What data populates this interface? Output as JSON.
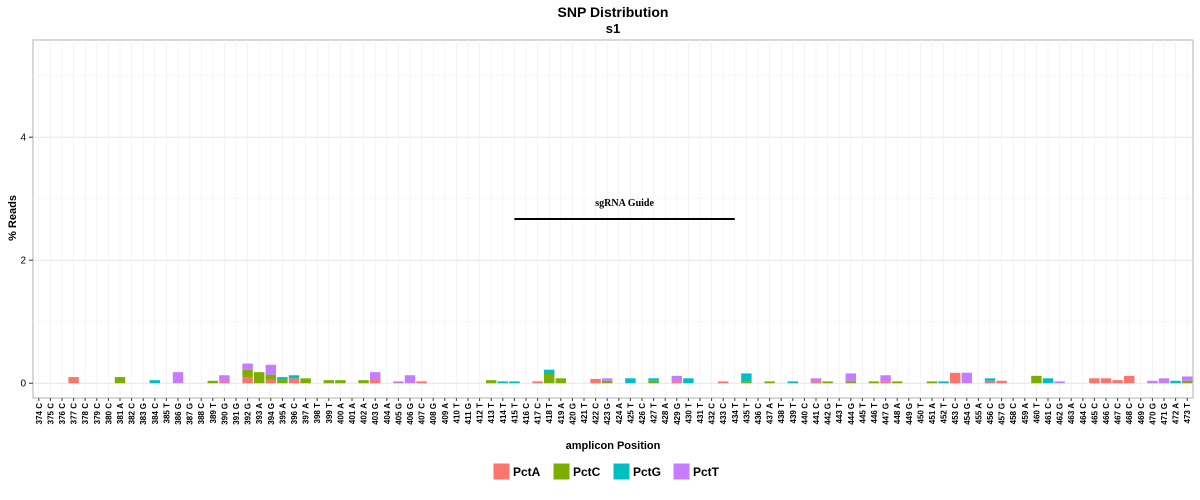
{
  "chart_data": {
    "type": "stacked_bar",
    "title": "SNP Distribution",
    "subtitle": "s1",
    "x_label": "amplicon Position",
    "y_label": "% Reads",
    "categories": [
      "374 C",
      "375 C",
      "376 C",
      "377 C",
      "378 C",
      "379 C",
      "380 C",
      "381 A",
      "382 C",
      "383 G",
      "384 C",
      "385 T",
      "386 G",
      "387 G",
      "388 C",
      "389 T",
      "390 G",
      "391 G",
      "392 G",
      "393 A",
      "394 G",
      "395 A",
      "396 C",
      "397 A",
      "398 T",
      "399 T",
      "400 A",
      "401 A",
      "402 A",
      "403 G",
      "404 A",
      "405 G",
      "406 G",
      "407 C",
      "408 G",
      "409 A",
      "410 T",
      "411 G",
      "412 T",
      "413 T",
      "414 T",
      "415 T",
      "416 C",
      "417 C",
      "418 T",
      "419 A",
      "420 G",
      "421 T",
      "422 C",
      "423 G",
      "424 A",
      "425 T",
      "426 C",
      "427 T",
      "428 A",
      "429 G",
      "430 T",
      "431 T",
      "432 C",
      "433 C",
      "434 T",
      "435 T",
      "436 C",
      "437 A",
      "438 T",
      "439 T",
      "440 C",
      "441 C",
      "442 G",
      "443 T",
      "444 G",
      "445 T",
      "446 T",
      "447 G",
      "448 A",
      "449 G",
      "450 T",
      "451 A",
      "452 T",
      "453 C",
      "454 G",
      "455 A",
      "456 C",
      "457 G",
      "458 C",
      "459 A",
      "460 T",
      "461 C",
      "462 G",
      "463 A",
      "464 C",
      "465 C",
      "466 C",
      "467 C",
      "468 C",
      "469 C",
      "470 G",
      "471 G",
      "472 A",
      "473 T"
    ],
    "series": [
      {
        "name": "PctA",
        "color": "#f8766d",
        "values": [
          0,
          0,
          0,
          0.1,
          0,
          0,
          0,
          0,
          0,
          0,
          0,
          0,
          0,
          0,
          0,
          0,
          0.03,
          0,
          0.1,
          0,
          0.06,
          0,
          0.08,
          0,
          0,
          0,
          0,
          0,
          0,
          0.06,
          0,
          0,
          0,
          0.03,
          0,
          0,
          0,
          0,
          0,
          0,
          0,
          0,
          0,
          0.03,
          0,
          0,
          0,
          0,
          0.07,
          0,
          0,
          0,
          0,
          0,
          0,
          0.03,
          0,
          0,
          0,
          0.03,
          0,
          0,
          0,
          0,
          0,
          0,
          0,
          0.03,
          0,
          0,
          0,
          0,
          0,
          0.03,
          0,
          0,
          0,
          0,
          0,
          0.17,
          0,
          0,
          0.04,
          0.04,
          0,
          0,
          0,
          0,
          0,
          0,
          0,
          0.08,
          0.08,
          0.05,
          0.12,
          0,
          0,
          0,
          0,
          0
        ]
      },
      {
        "name": "PctC",
        "color": "#7cae00",
        "values": [
          0,
          0,
          0,
          0,
          0,
          0,
          0,
          0.1,
          0,
          0,
          0,
          0,
          0,
          0,
          0,
          0.04,
          0,
          0,
          0.12,
          0.18,
          0.08,
          0.06,
          0,
          0.08,
          0,
          0.05,
          0.05,
          0,
          0.05,
          0,
          0,
          0,
          0,
          0,
          0,
          0,
          0,
          0,
          0,
          0.05,
          0,
          0,
          0,
          0,
          0.15,
          0.08,
          0,
          0,
          0,
          0.04,
          0,
          0,
          0,
          0.04,
          0,
          0,
          0,
          0,
          0,
          0,
          0,
          0.03,
          0,
          0.03,
          0,
          0,
          0,
          0,
          0.03,
          0,
          0.03,
          0,
          0.03,
          0,
          0.03,
          0,
          0,
          0.03,
          0,
          0,
          0,
          0,
          0,
          0,
          0,
          0,
          0.12,
          0,
          0,
          0,
          0,
          0,
          0,
          0,
          0,
          0,
          0,
          0,
          0,
          0.04
        ]
      },
      {
        "name": "PctG",
        "color": "#00bfc4",
        "values": [
          0,
          0,
          0,
          0,
          0,
          0,
          0,
          0,
          0,
          0,
          0.05,
          0,
          0,
          0,
          0,
          0,
          0,
          0,
          0,
          0,
          0,
          0.04,
          0.05,
          0,
          0,
          0,
          0,
          0,
          0,
          0,
          0,
          0,
          0,
          0,
          0,
          0,
          0,
          0,
          0,
          0,
          0.03,
          0.03,
          0,
          0,
          0.07,
          0,
          0,
          0,
          0,
          0,
          0,
          0.08,
          0,
          0.04,
          0,
          0,
          0.08,
          0,
          0,
          0,
          0,
          0.13,
          0,
          0,
          0,
          0.03,
          0,
          0,
          0,
          0,
          0,
          0,
          0,
          0,
          0,
          0,
          0,
          0,
          0.03,
          0,
          0,
          0,
          0.04,
          0,
          0,
          0,
          0,
          0.08,
          0,
          0,
          0,
          0,
          0,
          0,
          0,
          0,
          0,
          0,
          0.04,
          0
        ]
      },
      {
        "name": "PctT",
        "color": "#c77cff",
        "values": [
          0,
          0,
          0,
          0,
          0,
          0,
          0,
          0,
          0,
          0,
          0,
          0,
          0.18,
          0,
          0,
          0,
          0.1,
          0,
          0.1,
          0,
          0.16,
          0,
          0,
          0,
          0,
          0,
          0,
          0,
          0,
          0.12,
          0,
          0.03,
          0.13,
          0,
          0,
          0,
          0,
          0,
          0,
          0,
          0,
          0,
          0,
          0,
          0,
          0,
          0,
          0,
          0,
          0.04,
          0,
          0,
          0,
          0,
          0,
          0.09,
          0,
          0,
          0,
          0,
          0,
          0,
          0,
          0,
          0,
          0,
          0,
          0.05,
          0,
          0,
          0.13,
          0,
          0,
          0.1,
          0,
          0,
          0,
          0,
          0,
          0,
          0.17,
          0,
          0,
          0,
          0,
          0,
          0,
          0,
          0.03,
          0,
          0,
          0,
          0,
          0,
          0,
          0,
          0.04,
          0.08,
          0,
          0.07
        ]
      }
    ],
    "ylim": [
      -0.24,
      5.58
    ],
    "yticks": [
      0,
      2,
      4
    ],
    "yticks_minor": [
      1,
      3,
      5
    ],
    "grid": true,
    "legend": "bottom",
    "annotation": {
      "label": "sgRNA Guide",
      "start": "415 T",
      "end": "434 T",
      "y": 2.67
    }
  }
}
